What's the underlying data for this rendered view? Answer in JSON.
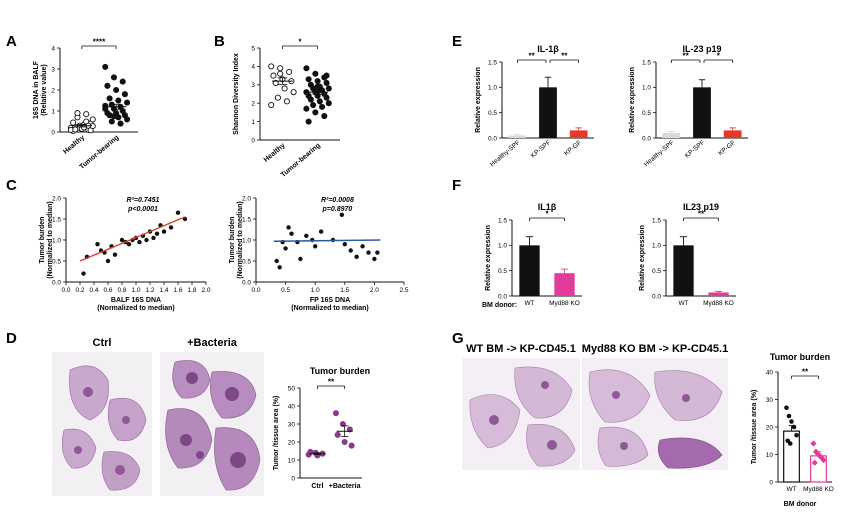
{
  "panels": {
    "A": {
      "letter": "A",
      "ylabel": "16S DNA in BALF",
      "ylabel2": "(Relative value)",
      "yticks": [
        "0",
        "1",
        "2",
        "3",
        "4"
      ],
      "ylim": [
        0,
        4
      ],
      "cats": [
        "Healthy",
        "Tumor-bearing"
      ],
      "sig": "****"
    },
    "B": {
      "letter": "B",
      "ylabel": "Shannon Diversity Index",
      "yticks": [
        "0",
        "1",
        "2",
        "3",
        "4",
        "5"
      ],
      "ylim": [
        0,
        5
      ],
      "cats": [
        "Healthy",
        "Tumor-bearing"
      ],
      "sig": "*"
    },
    "C": {
      "letter": "C"
    },
    "D": {
      "letter": "D",
      "img1": "Ctrl",
      "img2": "+Bacteria",
      "title": "Tumor burden",
      "ylabel": "Tumor /tissue area (%)",
      "yticks": [
        "0",
        "10",
        "20",
        "30",
        "40",
        "50"
      ],
      "ylim": [
        0,
        50
      ],
      "cats": [
        "Ctrl",
        "+Bacteria"
      ],
      "sig": "**"
    },
    "E": {
      "letter": "E"
    },
    "F": {
      "letter": "F",
      "bm_label": "BM donor:"
    },
    "G": {
      "letter": "G",
      "img1": "WT BM -> KP-CD45.1",
      "img2": "Myd88 KO BM -> KP-CD45.1",
      "title": "Tumor burden",
      "ylabel": "Tumor /tissue area (%)",
      "yticks": [
        "0",
        "10",
        "20",
        "30",
        "40"
      ],
      "ylim": [
        0,
        40
      ],
      "cats": [
        "WT",
        "Myd88 KO"
      ],
      "xlabel": "BM donor",
      "sig": "**"
    }
  },
  "chart_data": [
    {
      "id": "A",
      "type": "scatter",
      "cats": [
        "Healthy",
        "Tumor-bearing"
      ],
      "points": [
        [
          0.2,
          0.3,
          0.1,
          0.05,
          0.15,
          0.4,
          0.25,
          0.35,
          0.6,
          0.7,
          0.5,
          0.1,
          0.2,
          0.3,
          0.45,
          0.15,
          0.08,
          0.12,
          0.22,
          0.28,
          0.9,
          0.85
        ],
        [
          3.1,
          2.6,
          2.4,
          2.2,
          2.0,
          1.8,
          1.6,
          1.5,
          1.4,
          1.3,
          1.2,
          1.1,
          1.1,
          1.0,
          0.9,
          0.9,
          0.8,
          0.8,
          0.7,
          0.6,
          0.5,
          0.4,
          1.25,
          0.75
        ]
      ],
      "mean": [
        0.3,
        1.2
      ],
      "sem": [
        0.06,
        0.12
      ]
    },
    {
      "id": "B",
      "type": "scatter",
      "cats": [
        "Healthy",
        "Tumor-bearing"
      ],
      "points": [
        [
          4.0,
          3.9,
          3.7,
          3.5,
          3.3,
          3.2,
          3.1,
          2.8,
          2.6,
          2.3,
          2.1,
          1.9,
          3.6
        ],
        [
          3.9,
          3.6,
          3.4,
          3.3,
          3.2,
          3.1,
          3.0,
          2.9,
          2.8,
          2.8,
          2.7,
          2.6,
          2.6,
          2.5,
          2.4,
          2.4,
          2.3,
          2.2,
          2.1,
          2.0,
          1.9,
          1.8,
          1.7,
          1.5,
          1.3,
          1.0,
          2.9,
          3.5,
          2.2,
          2.7
        ]
      ],
      "mean": [
        3.2,
        2.6
      ],
      "sem": [
        0.18,
        0.12
      ]
    },
    {
      "id": "C1",
      "type": "scatter",
      "xlabel": "BALF 16S DNA",
      "xlabel2": "(Normalized to median)",
      "ylabel": "Tumor burden",
      "ylabel2": "(Normalized to median)",
      "xlim": [
        0,
        2
      ],
      "ylim": [
        0,
        2
      ],
      "xticks": [
        "0.0",
        "0.2",
        "0.4",
        "0.6",
        "0.8",
        "1.0",
        "1.2",
        "1.4",
        "1.6",
        "1.8",
        "2.0"
      ],
      "yticks": [
        "0.0",
        "0.5",
        "1.0",
        "1.5",
        "2.0"
      ],
      "stat1": "R²=0.7451",
      "stat2": "p<0.0001",
      "fit": [
        [
          0.2,
          0.5
        ],
        [
          1.7,
          1.55
        ]
      ],
      "fit_color": "#d9412b",
      "x": [
        0.25,
        0.3,
        0.45,
        0.5,
        0.55,
        0.6,
        0.7,
        0.8,
        0.85,
        0.9,
        0.95,
        1.0,
        1.05,
        1.1,
        1.2,
        1.25,
        1.3,
        1.35,
        1.4,
        1.5,
        1.6,
        1.7,
        0.65,
        1.15
      ],
      "y": [
        0.2,
        0.6,
        0.9,
        0.75,
        0.7,
        0.5,
        0.65,
        1.0,
        0.95,
        0.9,
        1.0,
        1.05,
        0.95,
        1.1,
        1.2,
        1.05,
        1.15,
        1.35,
        1.2,
        1.3,
        1.65,
        1.5,
        0.85,
        1.0
      ]
    },
    {
      "id": "C2",
      "type": "scatter",
      "xlabel": "FP 16S DNA",
      "xlabel2": "(Normalized to median)",
      "ylabel": "Tumor burden",
      "ylabel2": "(Normalized to median)",
      "xlim": [
        0,
        2.5
      ],
      "ylim": [
        0,
        2
      ],
      "xticks": [
        "0.0",
        "0.5",
        "1.0",
        "1.5",
        "2.0",
        "2.5"
      ],
      "yticks": [
        "0.0",
        "0.5",
        "1.0",
        "1.5",
        "2.0"
      ],
      "stat1": "R²=0.0008",
      "stat2": "p=0.8970",
      "fit": [
        [
          0.3,
          0.97
        ],
        [
          2.1,
          1.0
        ]
      ],
      "fit_color": "#2c5aa0",
      "x": [
        0.35,
        0.4,
        0.5,
        0.55,
        0.6,
        0.7,
        0.75,
        0.85,
        0.95,
        1.0,
        1.1,
        1.3,
        1.45,
        1.5,
        1.6,
        1.7,
        1.8,
        1.9,
        2.0,
        2.05,
        0.45
      ],
      "y": [
        0.5,
        0.35,
        0.8,
        1.3,
        1.15,
        0.95,
        0.55,
        1.1,
        1.0,
        0.85,
        1.2,
        1.0,
        1.6,
        0.9,
        0.75,
        0.6,
        0.85,
        0.7,
        0.55,
        0.7,
        0.95
      ]
    },
    {
      "id": "D",
      "type": "scatter",
      "cats": [
        "Ctrl",
        "+Bacteria"
      ],
      "points": [
        [
          13,
          14,
          13.5,
          14.5,
          12.5
        ],
        [
          36,
          30,
          27,
          24,
          20,
          18
        ]
      ],
      "mean": [
        13.5,
        26
      ],
      "sem": [
        0.5,
        3
      ],
      "color": "#8b3a8b"
    },
    {
      "id": "E1",
      "type": "bar",
      "title": "IL-1β",
      "ylabel": "Relative expression",
      "categories": [
        "Healthy-SPF",
        "KP-SPF",
        "KP-GF"
      ],
      "values": [
        0.05,
        1.0,
        0.15
      ],
      "errors": [
        0.02,
        0.2,
        0.05
      ],
      "colors": [
        "#d9d9d9",
        "#111111",
        "#e23b2a"
      ],
      "ylim": [
        0,
        1.5
      ],
      "yticks": [
        "0.0",
        "0.5",
        "1.0",
        "1.5"
      ],
      "sig": [
        [
          "**",
          0,
          1
        ],
        [
          "**",
          1,
          2
        ]
      ]
    },
    {
      "id": "E2",
      "type": "bar",
      "title": "IL-23 p19",
      "ylabel": "Relative expression",
      "categories": [
        "Healthy-SPF",
        "KP-SPF",
        "KP-GF"
      ],
      "values": [
        0.1,
        1.0,
        0.15
      ],
      "errors": [
        0.03,
        0.15,
        0.05
      ],
      "colors": [
        "#d9d9d9",
        "#111111",
        "#e23b2a"
      ],
      "ylim": [
        0,
        1.5
      ],
      "yticks": [
        "0.0",
        "0.5",
        "1.0",
        "1.5"
      ],
      "sig": [
        [
          "**",
          0,
          1
        ],
        [
          "*",
          1,
          2
        ]
      ]
    },
    {
      "id": "F1",
      "type": "bar",
      "title": "IL1β",
      "ylabel": "Relative expression",
      "categories": [
        "WT",
        "Myd88 KO"
      ],
      "values": [
        1.0,
        0.45
      ],
      "errors": [
        0.17,
        0.08
      ],
      "colors": [
        "#111111",
        "#e23b9a"
      ],
      "ylim": [
        0,
        1.5
      ],
      "yticks": [
        "0.0",
        "0.5",
        "1.0",
        "1.5"
      ],
      "sig": [
        [
          "*",
          0,
          1
        ]
      ]
    },
    {
      "id": "F2",
      "type": "bar",
      "title": "IL23 p19",
      "ylabel": "Relative expression",
      "categories": [
        "WT",
        "Myd88 KO"
      ],
      "values": [
        1.0,
        0.07
      ],
      "errors": [
        0.17,
        0.02
      ],
      "colors": [
        "#111111",
        "#e23b9a"
      ],
      "ylim": [
        0,
        1.5
      ],
      "yticks": [
        "0.0",
        "0.5",
        "1.0",
        "1.5"
      ],
      "sig": [
        [
          "**",
          0,
          1
        ]
      ]
    },
    {
      "id": "G",
      "type": "bar",
      "categories": [
        "WT",
        "Myd88 KO"
      ],
      "values": [
        18.5,
        9.5
      ],
      "errors": [
        2,
        1.5
      ],
      "points": [
        [
          27,
          24,
          22,
          20,
          17,
          15,
          14
        ],
        [
          14,
          11,
          10,
          9,
          8,
          7
        ]
      ],
      "colors": [
        "#111111",
        "#e23b9a"
      ],
      "ylim": [
        0,
        40
      ]
    }
  ]
}
